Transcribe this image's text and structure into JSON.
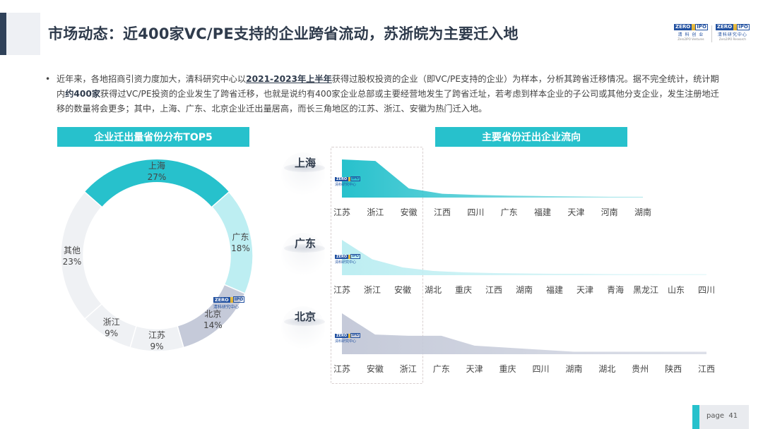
{
  "header": {
    "title": "市场动态：近400家VC/PE支持的企业跨省流动，苏浙皖为主要迁入地",
    "logos": [
      {
        "mark_left": "ZERO",
        "mark_right": "IPO",
        "cn": "清 科 创 业",
        "en": "Zero2IPO Ventures"
      },
      {
        "mark_left": "ZERO",
        "mark_right": "IPO",
        "cn": "清科研究中心",
        "en": "Zero2IPO Research"
      }
    ]
  },
  "summary": {
    "bullet": "•",
    "part1": "近年来，各地招商引资力度加大，清科研究中心以",
    "highlight1": "2021-2023年上半年",
    "part2": "获得过股权投资的企业（即VC/PE支持的企业）为样本，分析其跨省迁移情况。据不完全统计，统计期内",
    "highlight2": "约400家",
    "part3": "获得过VC/PE投资的企业发生了跨省迁移，也就是说约有400家企业总部或主要经营地发生了跨省迁址，若考虑到样本企业的子公司或其他分支企业，发生注册地迁移的数量将会更多；其中，上海、广东、北京企业迁出量居高，而长三角地区的江苏、浙江、安徽为热门迁入地。"
  },
  "watermark": {
    "mark_left": "ZERO",
    "mark_right": "IPO",
    "cn": "清科研究中心",
    "en": "Zero2IPO Research"
  },
  "colors": {
    "accent": "#27c1cc",
    "title": "#2f3b4c",
    "shanghai": "#27c1cc",
    "guangdong": "#bdeef2",
    "beijing": "#c5cad9",
    "other": "#eef0f4"
  },
  "chart_data": [
    {
      "type": "pie",
      "variant": "donut",
      "title": "企业迁出量省份分布TOP5",
      "slices": [
        {
          "label": "上海",
          "value": 27,
          "display": "27%",
          "color": "#27c1cc"
        },
        {
          "label": "广东",
          "value": 18,
          "display": "18%",
          "color": "#bdeef2"
        },
        {
          "label": "北京",
          "value": 14,
          "display": "14%",
          "color": "#c5cad9"
        },
        {
          "label": "江苏",
          "value": 9,
          "display": "9%",
          "color": "#eff1f4"
        },
        {
          "label": "浙江",
          "value": 9,
          "display": "9%",
          "color": "#eff1f4"
        },
        {
          "label": "其他",
          "value": 23,
          "display": "23%",
          "color": "#eff1f4"
        }
      ],
      "unit": "%"
    },
    {
      "type": "area",
      "title": "主要省份迁出企业流向",
      "panels": [
        {
          "origin": "上海",
          "color": "#27c1cc",
          "categories": [
            "江苏",
            "浙江",
            "安徽",
            "江西",
            "四川",
            "广东",
            "福建",
            "天津",
            "河南",
            "湖南"
          ],
          "values": [
            100,
            96,
            24,
            10,
            7,
            5,
            4,
            3,
            2,
            2
          ],
          "unit": "relative (estimated)"
        },
        {
          "origin": "广东",
          "color": "#bdeef2",
          "categories": [
            "江苏",
            "浙江",
            "安徽",
            "湖北",
            "重庆",
            "江西",
            "湖南",
            "福建",
            "天津",
            "青海",
            "黑龙江",
            "山东",
            "四川"
          ],
          "values": [
            100,
            45,
            22,
            12,
            8,
            6,
            5,
            4,
            4,
            3,
            3,
            3,
            3
          ],
          "unit": "relative (estimated)"
        },
        {
          "origin": "北京",
          "color": "#c5cad9",
          "categories": [
            "江苏",
            "安徽",
            "浙江",
            "广东",
            "天津",
            "重庆",
            "四川",
            "湖南",
            "湖北",
            "贵州",
            "陕西",
            "江西"
          ],
          "values": [
            100,
            48,
            45,
            45,
            21,
            16,
            11,
            6,
            6,
            6,
            6,
            6
          ],
          "unit": "relative (estimated)"
        }
      ]
    }
  ],
  "footer": {
    "page_label": "page",
    "page_number": "41"
  }
}
